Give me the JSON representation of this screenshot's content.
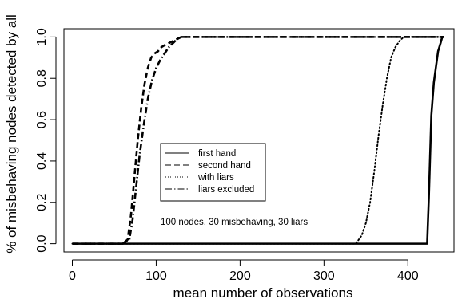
{
  "chart_data": {
    "type": "line",
    "title": "",
    "xlabel": "mean number of observations",
    "ylabel": "% of misbehaving nodes detected by all",
    "xlim": [
      -10,
      455
    ],
    "ylim": [
      -0.04,
      1.04
    ],
    "x_ticks": [
      0,
      100,
      200,
      300,
      400
    ],
    "y_ticks": [
      0.0,
      0.2,
      0.4,
      0.6,
      0.8,
      1.0
    ],
    "x_tick_labels": [
      "0",
      "100",
      "200",
      "300",
      "400"
    ],
    "y_tick_labels": [
      "0.0",
      "0.2",
      "0.4",
      "0.6",
      "0.8",
      "1.0"
    ],
    "grid": false,
    "legend_position": "center-left",
    "annotation": "100 nodes, 30 misbehaving, 30 liars",
    "series": [
      {
        "name": "first hand",
        "style": "solid",
        "x": [
          0,
          200,
          300,
          420,
          423,
          425,
          428,
          431,
          433,
          436,
          439,
          441,
          443
        ],
        "y": [
          0.0,
          0.0,
          0.0,
          0.0,
          0.0,
          0.22,
          0.62,
          0.78,
          0.84,
          0.93,
          0.97,
          1.0,
          1.0
        ]
      },
      {
        "name": "second hand",
        "style": "dashed",
        "x": [
          0,
          60,
          66,
          70,
          74,
          78,
          82,
          86,
          90,
          94,
          98,
          102,
          106,
          110,
          115,
          120,
          130,
          200,
          300,
          443
        ],
        "y": [
          0.0,
          0.0,
          0.02,
          0.14,
          0.32,
          0.5,
          0.65,
          0.77,
          0.85,
          0.9,
          0.92,
          0.93,
          0.95,
          0.96,
          0.97,
          0.98,
          1.0,
          1.0,
          1.0,
          1.0
        ]
      },
      {
        "name": "with liars",
        "style": "dotted",
        "x": [
          0,
          200,
          338,
          345,
          350,
          355,
          360,
          365,
          370,
          375,
          380,
          385,
          390,
          395,
          443
        ],
        "y": [
          0.0,
          0.0,
          0.0,
          0.04,
          0.1,
          0.2,
          0.35,
          0.52,
          0.67,
          0.8,
          0.9,
          0.95,
          0.98,
          1.0,
          1.0
        ]
      },
      {
        "name": "liars excluded",
        "style": "dashdot",
        "x": [
          0,
          60,
          68,
          72,
          76,
          80,
          85,
          90,
          95,
          100,
          105,
          110,
          115,
          120,
          125,
          130,
          200,
          300,
          443
        ],
        "y": [
          0.0,
          0.0,
          0.02,
          0.12,
          0.27,
          0.42,
          0.57,
          0.7,
          0.79,
          0.85,
          0.89,
          0.92,
          0.95,
          0.97,
          0.99,
          1.0,
          1.0,
          1.0,
          1.0
        ]
      }
    ]
  }
}
